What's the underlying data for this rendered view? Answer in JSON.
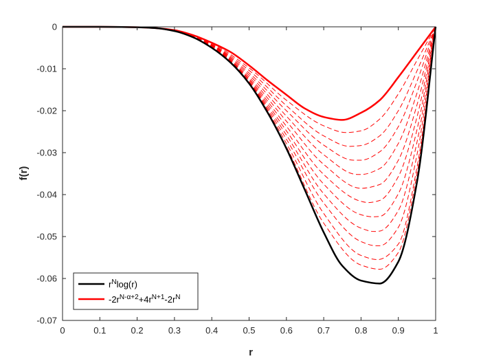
{
  "chart_data": {
    "type": "line",
    "xlabel": "r",
    "ylabel": "f(r)",
    "xlim": [
      0,
      1
    ],
    "ylim": [
      -0.07,
      0
    ],
    "xticks": [
      0,
      0.1,
      0.2,
      0.3,
      0.4,
      0.5,
      0.6,
      0.7,
      0.8,
      0.9,
      1
    ],
    "xtick_labels": [
      "0",
      "0.1",
      "0.2",
      "0.3",
      "0.4",
      "0.5",
      "0.6",
      "0.7",
      "0.8",
      "0.9",
      "1"
    ],
    "yticks": [
      0,
      -0.01,
      -0.02,
      -0.03,
      -0.04,
      -0.05,
      -0.06,
      -0.07
    ],
    "ytick_labels": [
      "0",
      "-0.01",
      "-0.02",
      "-0.03",
      "-0.04",
      "-0.05",
      "-0.06",
      "-0.07"
    ],
    "grid": false,
    "legend_position": "bottom-left",
    "legend": [
      {
        "label_base": "r",
        "label_sup": "N",
        "label_rest": "log(r)",
        "color": "#000000",
        "style": "solid"
      },
      {
        "label_html": "-2r<tspan baseline-shift=\"super\" font-size=\"10\">N-α+2</tspan>+4r<tspan baseline-shift=\"super\" font-size=\"10\">N+1</tspan>-2r<tspan baseline-shift=\"super\" font-size=\"10\">N</tspan>",
        "color": "#ff0000",
        "style": "solid"
      }
    ],
    "series": [
      {
        "color": "#000000",
        "style": "solid",
        "width": 2.5,
        "x": [
          0,
          0.1,
          0.2,
          0.25,
          0.3,
          0.35,
          0.4,
          0.45,
          0.5,
          0.55,
          0.6,
          0.65,
          0.7,
          0.75,
          0.8,
          0.85,
          0.9,
          0.95,
          1
        ],
        "y": [
          0,
          0,
          -0.0001,
          -0.0003,
          -0.001,
          -0.0025,
          -0.005,
          -0.0085,
          -0.0135,
          -0.0205,
          -0.029,
          -0.039,
          -0.049,
          -0.057,
          -0.0605,
          -0.0612,
          -0.056,
          -0.037,
          0
        ]
      },
      {
        "color": "#ff0000",
        "style": "solid",
        "width": 2.5,
        "x": [
          0,
          0.1,
          0.2,
          0.25,
          0.3,
          0.35,
          0.4,
          0.45,
          0.5,
          0.55,
          0.6,
          0.65,
          0.7,
          0.75,
          0.8,
          0.85,
          0.9,
          0.95,
          1
        ],
        "y": [
          0,
          0,
          -0.0001,
          -0.0003,
          -0.0008,
          -0.002,
          -0.0038,
          -0.006,
          -0.0092,
          -0.0128,
          -0.0162,
          -0.0195,
          -0.0215,
          -0.0222,
          -0.0205,
          -0.0175,
          -0.012,
          -0.006,
          0
        ]
      },
      {
        "color": "#ff0000",
        "style": "dashed",
        "width": 1,
        "x": [
          0,
          0.2,
          0.3,
          0.4,
          0.5,
          0.6,
          0.7,
          0.76,
          0.8,
          0.85,
          0.9,
          0.95,
          1
        ],
        "y": [
          0,
          -0.0001,
          -0.0009,
          -0.004,
          -0.0098,
          -0.0175,
          -0.0236,
          -0.0252,
          -0.0248,
          -0.022,
          -0.016,
          -0.008,
          0
        ]
      },
      {
        "color": "#ff0000",
        "style": "dashed",
        "width": 1,
        "x": [
          0,
          0.2,
          0.3,
          0.4,
          0.5,
          0.6,
          0.7,
          0.77,
          0.8,
          0.85,
          0.9,
          0.95,
          1
        ],
        "y": [
          0,
          -0.0001,
          -0.0009,
          -0.0042,
          -0.0104,
          -0.0188,
          -0.026,
          -0.0285,
          -0.0283,
          -0.026,
          -0.02,
          -0.0105,
          0
        ]
      },
      {
        "color": "#ff0000",
        "style": "dashed",
        "width": 1,
        "x": [
          0,
          0.2,
          0.3,
          0.4,
          0.5,
          0.6,
          0.7,
          0.78,
          0.8,
          0.85,
          0.9,
          0.95,
          1
        ],
        "y": [
          0,
          -0.0001,
          -0.0009,
          -0.0043,
          -0.011,
          -0.02,
          -0.0282,
          -0.0318,
          -0.0318,
          -0.0298,
          -0.0238,
          -0.013,
          0
        ]
      },
      {
        "color": "#ff0000",
        "style": "dashed",
        "width": 1,
        "x": [
          0,
          0.2,
          0.3,
          0.4,
          0.5,
          0.6,
          0.7,
          0.79,
          0.8,
          0.85,
          0.9,
          0.95,
          1
        ],
        "y": [
          0,
          -0.0001,
          -0.0009,
          -0.0044,
          -0.0115,
          -0.0213,
          -0.0305,
          -0.0352,
          -0.0352,
          -0.0338,
          -0.0278,
          -0.0158,
          0
        ]
      },
      {
        "color": "#ff0000",
        "style": "dashed",
        "width": 1,
        "x": [
          0,
          0.2,
          0.3,
          0.4,
          0.5,
          0.6,
          0.7,
          0.8,
          0.85,
          0.9,
          0.95,
          1
        ],
        "y": [
          0,
          -0.0001,
          -0.0009,
          -0.0045,
          -0.012,
          -0.0225,
          -0.0328,
          -0.0385,
          -0.0376,
          -0.0318,
          -0.0186,
          0
        ]
      },
      {
        "color": "#ff0000",
        "style": "dashed",
        "width": 1,
        "x": [
          0,
          0.2,
          0.3,
          0.4,
          0.5,
          0.6,
          0.7,
          0.8,
          0.82,
          0.85,
          0.9,
          0.95,
          1
        ],
        "y": [
          0,
          -0.0001,
          -0.0009,
          -0.0046,
          -0.0124,
          -0.0237,
          -0.0352,
          -0.0416,
          -0.0419,
          -0.0414,
          -0.0357,
          -0.0215,
          0
        ]
      },
      {
        "color": "#ff0000",
        "style": "dashed",
        "width": 1,
        "x": [
          0,
          0.2,
          0.3,
          0.4,
          0.5,
          0.6,
          0.7,
          0.8,
          0.83,
          0.85,
          0.9,
          0.95,
          1
        ],
        "y": [
          0,
          -0.0001,
          -0.001,
          -0.0047,
          -0.0127,
          -0.0248,
          -0.0375,
          -0.0448,
          -0.0453,
          -0.0452,
          -0.0398,
          -0.0245,
          0
        ]
      },
      {
        "color": "#ff0000",
        "style": "dashed",
        "width": 1,
        "x": [
          0,
          0.2,
          0.3,
          0.4,
          0.5,
          0.6,
          0.7,
          0.8,
          0.835,
          0.85,
          0.9,
          0.95,
          1
        ],
        "y": [
          0,
          -0.0001,
          -0.001,
          -0.0048,
          -0.013,
          -0.0258,
          -0.0398,
          -0.048,
          -0.0488,
          -0.0487,
          -0.0438,
          -0.0275,
          0
        ]
      },
      {
        "color": "#ff0000",
        "style": "dashed",
        "width": 1,
        "x": [
          0,
          0.2,
          0.3,
          0.4,
          0.5,
          0.6,
          0.7,
          0.8,
          0.84,
          0.85,
          0.9,
          0.95,
          1
        ],
        "y": [
          0,
          -0.0001,
          -0.001,
          -0.0049,
          -0.0132,
          -0.0268,
          -0.042,
          -0.0512,
          -0.0522,
          -0.0522,
          -0.0478,
          -0.0305,
          0
        ]
      },
      {
        "color": "#ff0000",
        "style": "dashed",
        "width": 1,
        "x": [
          0,
          0.2,
          0.3,
          0.4,
          0.5,
          0.6,
          0.7,
          0.8,
          0.845,
          0.9,
          0.95,
          1
        ],
        "y": [
          0,
          -0.0001,
          -0.001,
          -0.0049,
          -0.0133,
          -0.0278,
          -0.0445,
          -0.0545,
          -0.0555,
          -0.0518,
          -0.0335,
          0
        ]
      },
      {
        "color": "#ff0000",
        "style": "dashed",
        "width": 1,
        "x": [
          0,
          0.2,
          0.3,
          0.4,
          0.5,
          0.6,
          0.7,
          0.8,
          0.85,
          0.9,
          0.95,
          1
        ],
        "y": [
          0,
          -0.0001,
          -0.001,
          -0.005,
          -0.0134,
          -0.0286,
          -0.0468,
          -0.0568,
          -0.0578,
          -0.0538,
          -0.035,
          0
        ]
      }
    ]
  }
}
